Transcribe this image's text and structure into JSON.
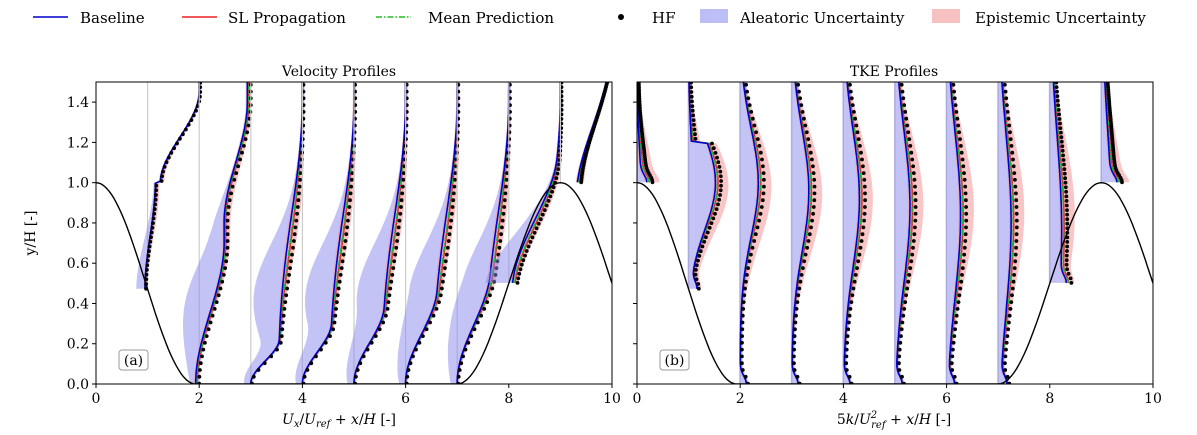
{
  "legend": {
    "baseline": "Baseline",
    "sl": "SL Propagation",
    "mean": "Mean Prediction",
    "hf": "HF",
    "aleatoric": "Aleatoric Uncertainty",
    "epistemic": "Epistemic Uncertainty"
  },
  "colors": {
    "baseline": "#0000cc",
    "sl": "#ee2222",
    "mean": "#22bb22",
    "hf": "#000000",
    "aleatoric": "#8888ee",
    "epistemic": "#f4a0a0",
    "wall": "#000000"
  },
  "chart_data": [
    {
      "type": "line",
      "panel": "(a)",
      "title": "Velocity Profiles",
      "xlabel": "U_x/U_ref + x/H [-]",
      "ylabel": "y/H [-]",
      "xlim": [
        0,
        10
      ],
      "ylim": [
        0,
        1.5
      ],
      "xticks": [
        "0",
        "2",
        "4",
        "6",
        "8",
        "10"
      ],
      "yticks": [
        "0.0",
        "0.2",
        "0.4",
        "0.6",
        "0.8",
        "1.0",
        "1.2",
        "1.4"
      ],
      "stations": [
        1,
        2,
        3,
        4,
        5,
        6,
        7,
        8,
        9
      ],
      "series_names": [
        "Baseline",
        "SL Propagation",
        "Mean Prediction",
        "HF"
      ],
      "uncertainty_bands": [
        "Aleatoric Uncertainty",
        "Epistemic Uncertainty"
      ]
    },
    {
      "type": "line",
      "panel": "(b)",
      "title": "TKE Profiles",
      "xlabel": "5k/U_ref^2 + x/H [-]",
      "ylabel": "y/H [-]",
      "xlim": [
        0,
        10
      ],
      "ylim": [
        0,
        1.5
      ],
      "xticks": [
        "0",
        "2",
        "4",
        "6",
        "8",
        "10"
      ],
      "stations": [
        0,
        1,
        2,
        3,
        4,
        5,
        6,
        7,
        8,
        9
      ],
      "series_names": [
        "Baseline",
        "SL Propagation",
        "Mean Prediction",
        "HF"
      ],
      "uncertainty_bands": [
        "Aleatoric Uncertainty",
        "Epistemic Uncertainty"
      ]
    }
  ]
}
